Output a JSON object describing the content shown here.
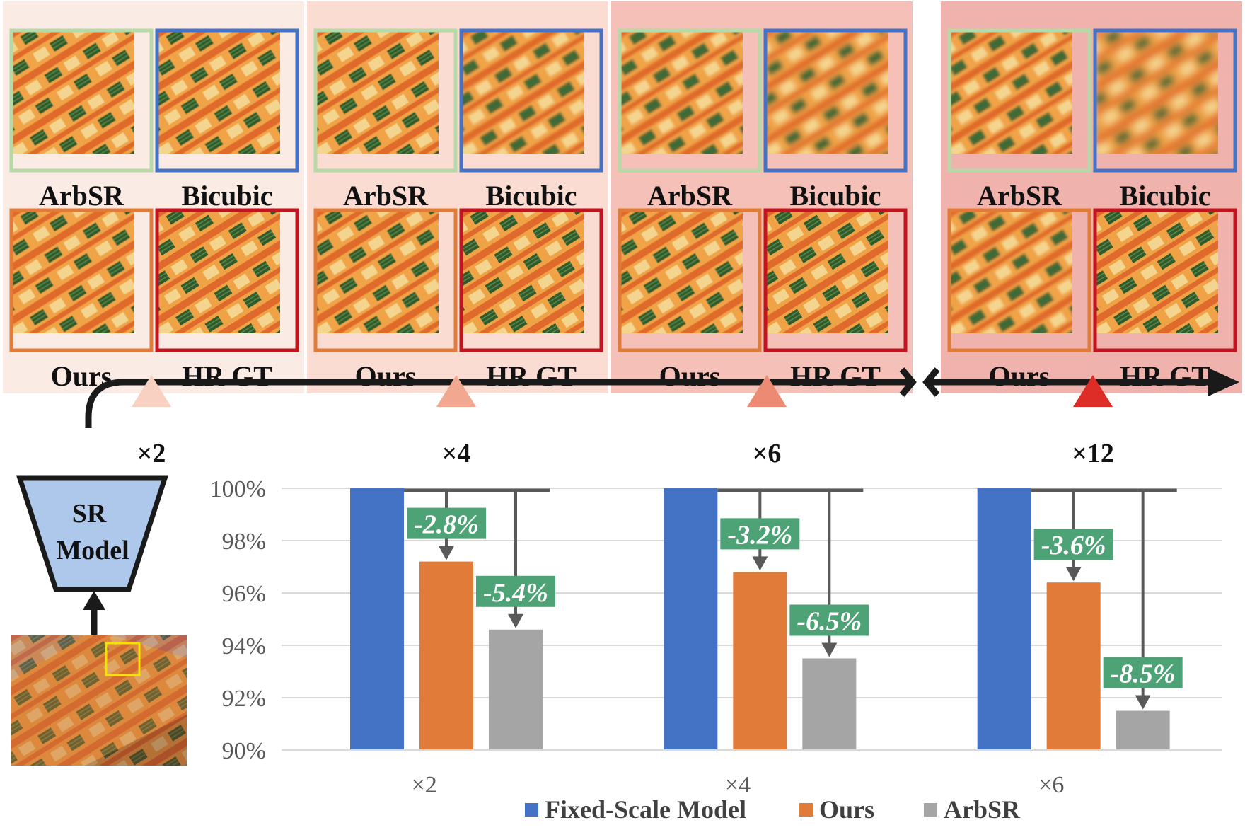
{
  "panels": [
    {
      "scale": "×2",
      "labels": [
        "ArbSR",
        "Bicubic",
        "Ours",
        "HR GT"
      ],
      "bg": "#fbebe5"
    },
    {
      "scale": "×4",
      "labels": [
        "ArbSR",
        "Bicubic",
        "Ours",
        "HR GT"
      ],
      "bg": "#fadcd3"
    },
    {
      "scale": "×6",
      "labels": [
        "ArbSR",
        "Bicubic",
        "Ours",
        "HR GT"
      ],
      "bg": "#f5c0b8"
    },
    {
      "scale": "×12",
      "labels": [
        "ArbSR",
        "Bicubic",
        "Ours",
        "HR GT"
      ],
      "bg": "#efb2ad"
    }
  ],
  "frame_colors": {
    "ArbSR": "#b5d9a7",
    "Bicubic": "#4472c4",
    "Ours": "#e07b3a",
    "HR GT": "#c0151e"
  },
  "timeline": {
    "scales": [
      "×2",
      "×4",
      "×6",
      "×12"
    ],
    "marker_colors": [
      "#f8d1c3",
      "#f0a891",
      "#ec8a73",
      "#dd2d26"
    ]
  },
  "sr_model": {
    "line1": "SR",
    "line2": "Model"
  },
  "chart_data": {
    "type": "bar",
    "categories": [
      "×2",
      "×4",
      "×6"
    ],
    "series": [
      {
        "name": "Fixed-Scale Model",
        "color": "#4472c4",
        "values": [
          100,
          100,
          100
        ]
      },
      {
        "name": "Ours",
        "color": "#e07b3a",
        "values": [
          97.2,
          96.8,
          96.4
        ]
      },
      {
        "name": "ArbSR",
        "color": "#a5a5a5",
        "values": [
          94.6,
          93.5,
          91.5
        ]
      }
    ],
    "annotations": {
      "Ours": [
        "-2.8%",
        "-3.2%",
        "-3.6%"
      ],
      "ArbSR": [
        "-5.4%",
        "-6.5%",
        "-8.5%"
      ]
    },
    "annotation_color": "#4da276",
    "yticks": [
      "90%",
      "92%",
      "94%",
      "96%",
      "98%",
      "100%"
    ],
    "ylim": [
      90,
      100
    ],
    "grid": true,
    "legend_position": "bottom"
  }
}
